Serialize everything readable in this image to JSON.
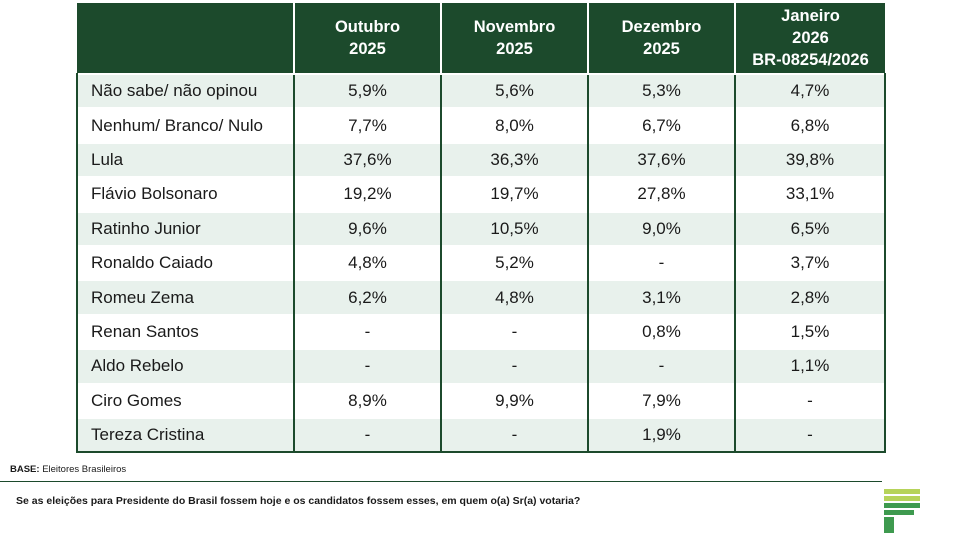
{
  "table": {
    "headers": [
      "",
      "Outubro\n2025",
      "Novembro\n2025",
      "Dezembro\n2025",
      "Janeiro\n2026\nBR-08254/2026"
    ],
    "rows": [
      [
        "Não sabe/ não opinou",
        "5,9%",
        "5,6%",
        "5,3%",
        "4,7%"
      ],
      [
        "Nenhum/ Branco/ Nulo",
        "7,7%",
        "8,0%",
        "6,7%",
        "6,8%"
      ],
      [
        "Lula",
        "37,6%",
        "36,3%",
        "37,6%",
        "39,8%"
      ],
      [
        "Flávio Bolsonaro",
        "19,2%",
        "19,7%",
        "27,8%",
        "33,1%"
      ],
      [
        "Ratinho Junior",
        "9,6%",
        "10,5%",
        "9,0%",
        "6,5%"
      ],
      [
        "Ronaldo Caiado",
        "4,8%",
        "5,2%",
        "-",
        "3,7%"
      ],
      [
        "Romeu Zema",
        "6,2%",
        "4,8%",
        "3,1%",
        "2,8%"
      ],
      [
        "Renan Santos",
        "-",
        "-",
        "0,8%",
        "1,5%"
      ],
      [
        "Aldo Rebelo",
        "-",
        "-",
        "-",
        "1,1%"
      ],
      [
        "Ciro Gomes",
        "8,9%",
        "9,9%",
        "7,9%",
        "-"
      ],
      [
        "Tereza Cristina",
        "-",
        "-",
        "1,9%",
        "-"
      ]
    ]
  },
  "footer": {
    "base_label": "BASE:",
    "base_text": "Eleitores Brasileiros",
    "question": "Se as eleições para Presidente do Brasil fossem hoje e os candidatos fossem esses, em quem o(a) Sr(a) votaria?"
  },
  "colors": {
    "header_bg": "#1c4a2c",
    "stripe_bg": "#e8f1ec",
    "logo_green": "#3e9a4f",
    "logo_lime": "#b6d35a"
  },
  "logo": {
    "icon": "company-logo-icon"
  }
}
